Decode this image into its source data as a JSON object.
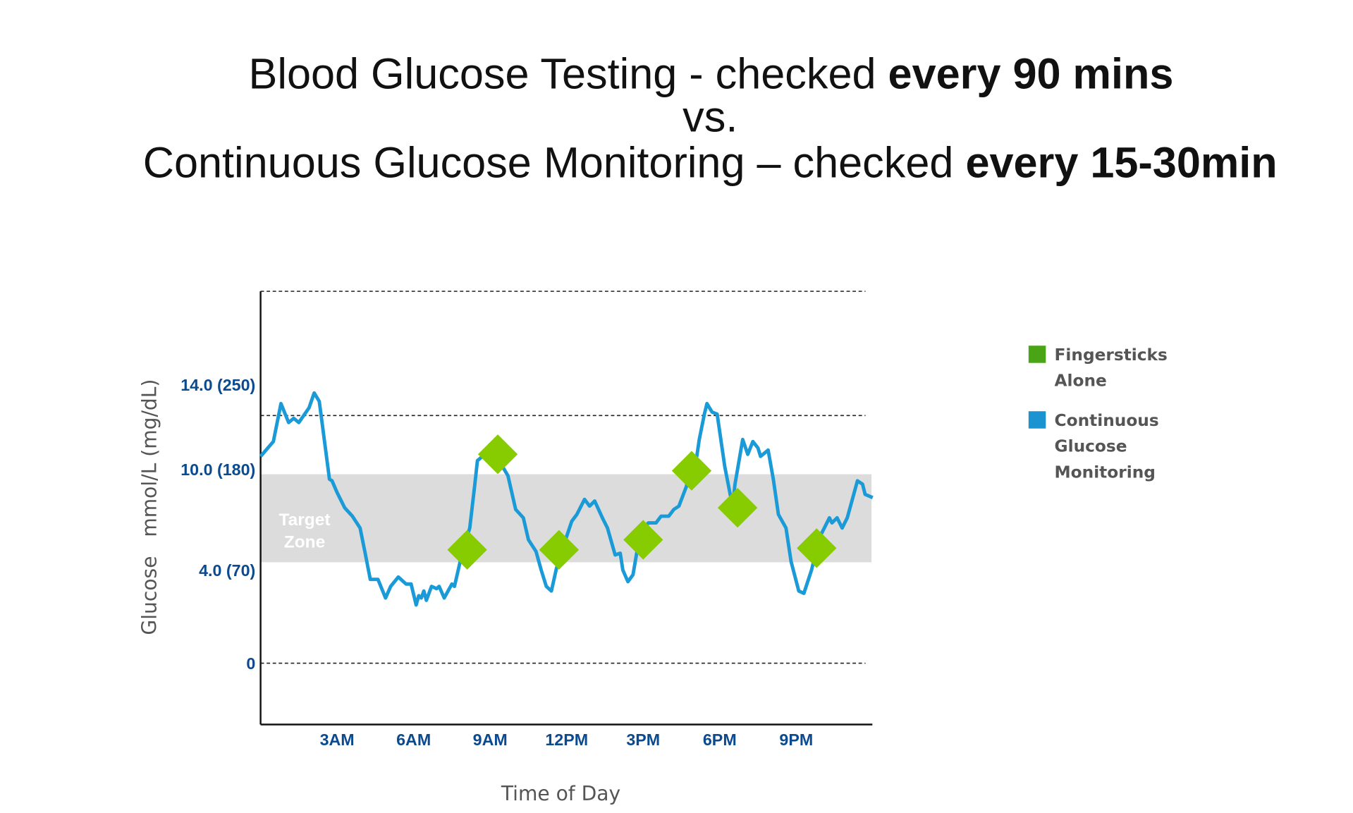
{
  "title": {
    "line1_regular": "Blood Glucose Testing - checked ",
    "line1_bold": "every 90 mins",
    "line2": "vs.",
    "line3_regular": "Continuous Glucose Monitoring – checked ",
    "line3_bold": "every 15-30min"
  },
  "chart_data": {
    "type": "line",
    "xlabel": "Time of Day",
    "ylabel": "Glucose   mmol/L (mg/dL)",
    "xlim": [
      0,
      24
    ],
    "x_ticks": [
      {
        "hour": 3,
        "label": "3AM"
      },
      {
        "hour": 6,
        "label": "6AM"
      },
      {
        "hour": 9,
        "label": "9AM"
      },
      {
        "hour": 12,
        "label": "12PM"
      },
      {
        "hour": 15,
        "label": "3PM"
      },
      {
        "hour": 18,
        "label": "6PM"
      },
      {
        "hour": 21,
        "label": "9PM"
      }
    ],
    "y_ticks": [
      {
        "value": 0,
        "label": "0"
      },
      {
        "value": 4,
        "label": "4.0 (70)"
      },
      {
        "value": 10,
        "label": "10.0 (180)"
      },
      {
        "value": 14,
        "label": "14.0 (250)"
      }
    ],
    "grid": "dashed horizontal lines",
    "target_zone": {
      "label_line1": "Target",
      "label_line2": "Zone",
      "range": [
        4,
        10
      ],
      "color": "#dcdcdc"
    },
    "legend_placement": "right",
    "series": [
      {
        "name": "Fingersticks Alone",
        "legend_lines": [
          "Fingersticks",
          "Alone"
        ],
        "kind": "scatter-diamond",
        "color": "#86cc00",
        "legend_color": "#4aa516",
        "points": [
          [
            8.1,
            5.2
          ],
          [
            9.3,
            10.7
          ],
          [
            11.7,
            5.2
          ],
          [
            15.0,
            5.8
          ],
          [
            16.9,
            9.9
          ],
          [
            18.7,
            7.7
          ],
          [
            21.8,
            5.3
          ]
        ]
      },
      {
        "name": "Continuous Glucose Monitoring",
        "legend_lines": [
          "Continuous",
          "Glucose",
          "Monitoring"
        ],
        "kind": "line",
        "color": "#1a9ad6",
        "legend_color": "#1a93d0",
        "points": [
          [
            0.0,
            10.6
          ],
          [
            0.5,
            11.3
          ],
          [
            0.8,
            13.1
          ],
          [
            1.1,
            12.2
          ],
          [
            1.3,
            12.4
          ],
          [
            1.5,
            12.2
          ],
          [
            1.9,
            12.9
          ],
          [
            2.1,
            13.6
          ],
          [
            2.3,
            13.2
          ],
          [
            2.4,
            12.3
          ],
          [
            2.7,
            9.4
          ],
          [
            2.8,
            9.3
          ],
          [
            3.0,
            8.6
          ],
          [
            3.3,
            7.7
          ],
          [
            3.6,
            7.2
          ],
          [
            3.9,
            6.5
          ],
          [
            4.1,
            5.0
          ],
          [
            4.3,
            3.6
          ],
          [
            4.6,
            3.6
          ],
          [
            4.9,
            2.8
          ],
          [
            5.1,
            3.3
          ],
          [
            5.4,
            3.7
          ],
          [
            5.7,
            3.4
          ],
          [
            5.9,
            3.4
          ],
          [
            6.1,
            2.5
          ],
          [
            6.2,
            2.9
          ],
          [
            6.3,
            2.8
          ],
          [
            6.4,
            3.1
          ],
          [
            6.5,
            2.7
          ],
          [
            6.7,
            3.3
          ],
          [
            6.9,
            3.2
          ],
          [
            7.0,
            3.3
          ],
          [
            7.2,
            2.8
          ],
          [
            7.5,
            3.4
          ],
          [
            7.6,
            3.3
          ],
          [
            7.9,
            5.0
          ],
          [
            8.2,
            6.5
          ],
          [
            8.4,
            9.1
          ],
          [
            8.5,
            10.4
          ],
          [
            8.8,
            10.7
          ],
          [
            9.2,
            10.7
          ],
          [
            9.7,
            9.6
          ],
          [
            10.0,
            7.6
          ],
          [
            10.3,
            7.1
          ],
          [
            10.5,
            5.8
          ],
          [
            10.8,
            5.1
          ],
          [
            11.0,
            4.0
          ],
          [
            11.2,
            3.3
          ],
          [
            11.4,
            3.1
          ],
          [
            11.6,
            4.1
          ],
          [
            11.8,
            5.0
          ],
          [
            12.0,
            6.0
          ],
          [
            12.2,
            6.9
          ],
          [
            12.4,
            7.3
          ],
          [
            12.7,
            8.2
          ],
          [
            12.9,
            7.8
          ],
          [
            13.1,
            8.1
          ],
          [
            13.4,
            7.1
          ],
          [
            13.6,
            6.5
          ],
          [
            13.9,
            4.9
          ],
          [
            14.1,
            5.0
          ],
          [
            14.2,
            4.0
          ],
          [
            14.4,
            3.5
          ],
          [
            14.6,
            3.8
          ],
          [
            14.8,
            5.5
          ],
          [
            15.0,
            6.4
          ],
          [
            15.2,
            6.8
          ],
          [
            15.5,
            6.8
          ],
          [
            15.7,
            7.2
          ],
          [
            16.0,
            7.2
          ],
          [
            16.2,
            7.6
          ],
          [
            16.4,
            7.8
          ],
          [
            16.7,
            9.0
          ],
          [
            16.8,
            10.4
          ],
          [
            17.1,
            10.6
          ],
          [
            17.2,
            11.4
          ],
          [
            17.4,
            12.6
          ],
          [
            17.5,
            13.1
          ],
          [
            17.7,
            12.7
          ],
          [
            17.9,
            12.6
          ],
          [
            18.2,
            10.1
          ],
          [
            18.5,
            7.8
          ],
          [
            18.6,
            9.1
          ],
          [
            18.9,
            11.4
          ],
          [
            19.1,
            10.7
          ],
          [
            19.3,
            11.3
          ],
          [
            19.5,
            11.0
          ],
          [
            19.6,
            10.6
          ],
          [
            19.9,
            10.9
          ],
          [
            20.1,
            9.4
          ],
          [
            20.3,
            7.3
          ],
          [
            20.6,
            6.5
          ],
          [
            20.8,
            4.5
          ],
          [
            21.1,
            3.1
          ],
          [
            21.3,
            3.0
          ],
          [
            21.6,
            4.0
          ],
          [
            21.9,
            5.9
          ],
          [
            22.1,
            6.5
          ],
          [
            22.3,
            7.1
          ],
          [
            22.4,
            6.8
          ],
          [
            22.6,
            7.1
          ],
          [
            22.8,
            6.5
          ],
          [
            23.0,
            7.1
          ],
          [
            23.2,
            8.2
          ],
          [
            23.4,
            9.3
          ],
          [
            23.6,
            9.1
          ],
          [
            23.7,
            8.5
          ],
          [
            24.0,
            8.3
          ]
        ]
      }
    ]
  }
}
